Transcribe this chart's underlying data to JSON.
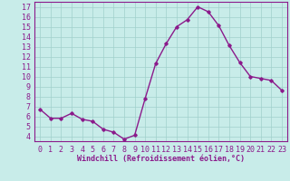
{
  "x": [
    0,
    1,
    2,
    3,
    4,
    5,
    6,
    7,
    8,
    9,
    10,
    11,
    12,
    13,
    14,
    15,
    16,
    17,
    18,
    19,
    20,
    21,
    22,
    23
  ],
  "y": [
    6.7,
    5.8,
    5.8,
    6.3,
    5.7,
    5.5,
    4.7,
    4.4,
    3.7,
    4.1,
    7.8,
    11.3,
    13.3,
    15.0,
    15.7,
    17.0,
    16.5,
    15.1,
    13.1,
    11.4,
    10.0,
    9.8,
    9.6,
    8.6
  ],
  "line_color": "#8b1a8b",
  "marker": "D",
  "marker_size": 1.8,
  "line_width": 1.0,
  "xlabel": "Windchill (Refroidissement éolien,°C)",
  "ylabel_ticks": [
    4,
    5,
    6,
    7,
    8,
    9,
    10,
    11,
    12,
    13,
    14,
    15,
    16,
    17
  ],
  "ylim": [
    3.5,
    17.5
  ],
  "xlim": [
    -0.5,
    23.5
  ],
  "bg_color": "#c8ece9",
  "plot_bg_color": "#c8ece9",
  "grid_color": "#a0d0cc",
  "xlabel_fontsize": 6.0,
  "tick_fontsize": 6.0
}
